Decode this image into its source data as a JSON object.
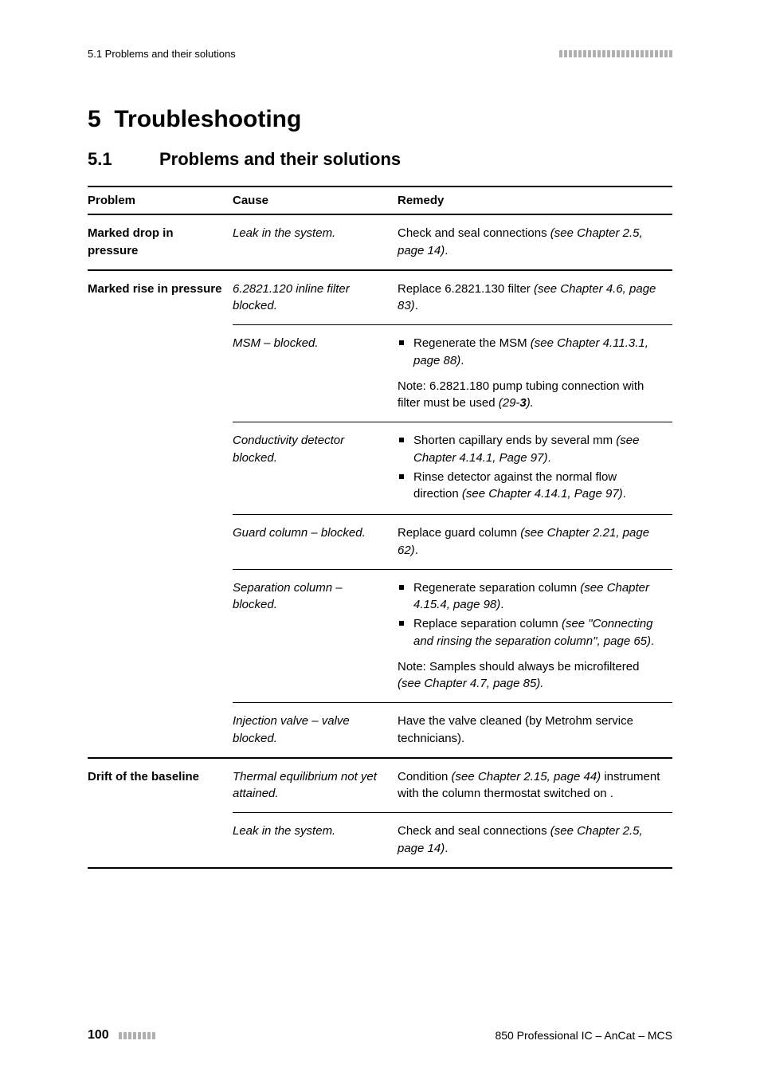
{
  "header": {
    "left": "5.1 Problems and their solutions",
    "tick_count": 24
  },
  "chapter": {
    "number": "5",
    "title": "Troubleshooting"
  },
  "section": {
    "number": "5.1",
    "title": "Problems and their solutions"
  },
  "table": {
    "headers": {
      "problem": "Problem",
      "cause": "Cause",
      "remedy": "Remedy"
    },
    "rows": [
      {
        "problem": "Marked drop in pressure",
        "cause": "Leak in the system.",
        "remedy_pre": "Check and seal connections ",
        "remedy_ital": "(see Chapter 2.5, page 14)",
        "remedy_post": "."
      },
      {
        "problem": "Marked rise in pressure",
        "subrows": [
          {
            "cause": "6.2821.120 inline filter blocked.",
            "remedy_pre": "Replace 6.2821.130 filter ",
            "remedy_ital": "(see Chapter 4.6, page 83)",
            "remedy_post": "."
          },
          {
            "cause": "MSM – blocked.",
            "bullets": [
              {
                "pre": "Regenerate the MSM ",
                "ital": "(see Chapter 4.11.3.1, page 88)",
                "post": "."
              }
            ],
            "note_pre": "Note: 6.2821.180 pump tubing connection with filter must be used ",
            "note_ital": "(29-",
            "note_bold": "3",
            "note_post": ")."
          },
          {
            "cause": "Conductivity detector blocked.",
            "bullets": [
              {
                "pre": "Shorten capillary ends by several mm ",
                "ital": "(see Chapter 4.14.1, Page 97)",
                "post": "."
              },
              {
                "pre": "Rinse detector against the normal flow direction ",
                "ital": "(see Chapter 4.14.1, Page 97)",
                "post": "."
              }
            ]
          },
          {
            "cause": "Guard column – blocked.",
            "remedy_pre": "Replace guard column ",
            "remedy_ital": "(see Chapter 2.21, page 62)",
            "remedy_post": "."
          },
          {
            "cause": "Separation column – blocked.",
            "bullets": [
              {
                "pre": "Regenerate separation column ",
                "ital": "(see Chapter 4.15.4, page 98)",
                "post": "."
              },
              {
                "pre": "Replace separation column ",
                "ital": "(see \"Connecting and rinsing the separation column\", page 65)",
                "post": "."
              }
            ],
            "note_pre": "Note: Samples should always be microfiltered ",
            "note_ital": "(see Chapter 4.7, page 85)",
            "note_post": "."
          },
          {
            "cause": "Injection valve – valve blocked.",
            "remedy_plain": "Have the valve cleaned (by Metrohm service technicians)."
          }
        ]
      },
      {
        "problem": "Drift of the baseline",
        "subrows": [
          {
            "cause": "Thermal equilibrium not yet attained.",
            "remedy_pre": "Condition ",
            "remedy_ital": "(see Chapter 2.15, page 44)",
            "remedy_post": " instrument with the column thermostat switched on ."
          },
          {
            "cause": "Leak in the system.",
            "remedy_pre": "Check and seal connections ",
            "remedy_ital": "(see Chapter 2.5, page 14)",
            "remedy_post": "."
          }
        ]
      }
    ]
  },
  "footer": {
    "page": "100",
    "right": "850 Professional IC – AnCat – MCS",
    "tick_count": 8
  }
}
